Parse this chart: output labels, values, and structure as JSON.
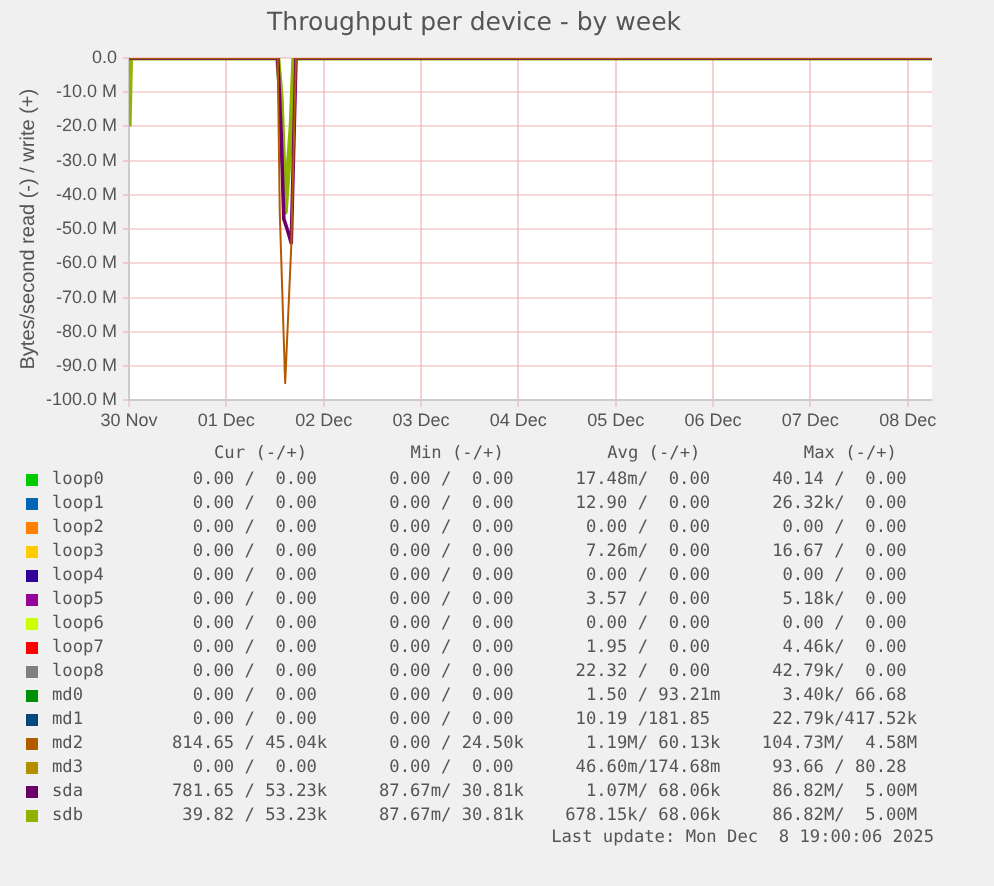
{
  "chart_data": {
    "type": "line",
    "title": "Throughput per device - by week",
    "ylabel": "Bytes/second read (-) / write (+)",
    "xlim": [
      "2025-11-30T00:00",
      "2025-12-08T06:00"
    ],
    "xticks": [
      {
        "value": "2025-11-30",
        "label": "30 Nov"
      },
      {
        "value": "2025-12-01",
        "label": "01 Dec"
      },
      {
        "value": "2025-12-02",
        "label": "02 Dec"
      },
      {
        "value": "2025-12-03",
        "label": "03 Dec"
      },
      {
        "value": "2025-12-04",
        "label": "04 Dec"
      },
      {
        "value": "2025-12-05",
        "label": "05 Dec"
      },
      {
        "value": "2025-12-06",
        "label": "06 Dec"
      },
      {
        "value": "2025-12-07",
        "label": "07 Dec"
      },
      {
        "value": "2025-12-08",
        "label": "08 Dec"
      }
    ],
    "ylim": [
      -100,
      0
    ],
    "yticks": [
      {
        "value": 0,
        "label": "0.0"
      },
      {
        "value": -10,
        "label": "-10.0 M"
      },
      {
        "value": -20,
        "label": "-20.0 M"
      },
      {
        "value": -30,
        "label": "-30.0 M"
      },
      {
        "value": -40,
        "label": "-40.0 M"
      },
      {
        "value": -50,
        "label": "-50.0 M"
      },
      {
        "value": -60,
        "label": "-60.0 M"
      },
      {
        "value": -70,
        "label": "-70.0 M"
      },
      {
        "value": -80,
        "label": "-80.0 M"
      },
      {
        "value": -90,
        "label": "-90.0 M"
      },
      {
        "value": -100,
        "label": "-100.0 M"
      }
    ],
    "grid": true,
    "legend": "bottom",
    "marker": "none",
    "line_style": "solid",
    "series": [
      {
        "name": "loop0",
        "color": "#00cc00"
      },
      {
        "name": "loop1",
        "color": "#0066b3"
      },
      {
        "name": "loop2",
        "color": "#ff8000"
      },
      {
        "name": "loop3",
        "color": "#ffcc00"
      },
      {
        "name": "loop4",
        "color": "#330099"
      },
      {
        "name": "loop5",
        "color": "#990099"
      },
      {
        "name": "loop6",
        "color": "#ccff00"
      },
      {
        "name": "loop7",
        "color": "#ff0000"
      },
      {
        "name": "loop8",
        "color": "#808080"
      },
      {
        "name": "md0",
        "color": "#008f00"
      },
      {
        "name": "md1",
        "color": "#00487d"
      },
      {
        "name": "md2",
        "color": "#b35a00",
        "x": [
          "2025-11-30T00:00",
          "2025-12-01T12:40",
          "2025-12-01T13:10",
          "2025-12-01T14:30",
          "2025-12-01T16:00",
          "2025-12-01T17:10",
          "2025-12-08T06:00"
        ],
        "values": [
          0,
          0,
          -45,
          -95,
          -55,
          0,
          0
        ]
      },
      {
        "name": "md3",
        "color": "#b38f00"
      },
      {
        "name": "sda",
        "color": "#6b006b",
        "x": [
          "2025-11-30T00:00",
          "2025-12-01T12:40",
          "2025-12-01T13:30",
          "2025-12-01T14:10",
          "2025-12-01T15:00",
          "2025-12-01T16:00",
          "2025-12-01T17:10",
          "2025-12-08T06:00"
        ],
        "values": [
          0,
          0,
          -22,
          -47,
          -50,
          -54,
          0,
          0
        ]
      },
      {
        "name": "sdb",
        "color": "#8fb300",
        "x": [
          "2025-11-30T00:00",
          "2025-11-30T00:20",
          "2025-12-01T12:40",
          "2025-12-01T13:30",
          "2025-12-01T14:30",
          "2025-12-01T16:00",
          "2025-12-01T16:40",
          "2025-12-08T06:00"
        ],
        "values": [
          -20,
          0,
          0,
          -12,
          -45,
          -20,
          0,
          0
        ]
      }
    ],
    "annotations": [
      "Cur (-/+)          Min (-/+)          Avg (-/+)          Max (-/+)",
      "  0.00 /  0.00       0.00 /  0.00      17.48m/  0.00      40.14 /  0.00",
      "  0.00 /  0.00       0.00 /  0.00      12.90 /  0.00      26.32k/  0.00",
      "  0.00 /  0.00       0.00 /  0.00       0.00 /  0.00       0.00 /  0.00",
      "  0.00 /  0.00       0.00 /  0.00       7.26m/  0.00      16.67 /  0.00",
      "  0.00 /  0.00       0.00 /  0.00       0.00 /  0.00       0.00 /  0.00",
      "  0.00 /  0.00       0.00 /  0.00       3.57 /  0.00       5.18k/  0.00",
      "  0.00 /  0.00       0.00 /  0.00       0.00 /  0.00       0.00 /  0.00",
      "  0.00 /  0.00       0.00 /  0.00       1.95 /  0.00       4.46k/  0.00",
      "  0.00 /  0.00       0.00 /  0.00      22.32 /  0.00      42.79k/  0.00",
      "  0.00 /  0.00       0.00 /  0.00       1.50 / 93.21m      3.40k/ 66.68",
      "  0.00 /  0.00       0.00 /  0.00      10.19 /181.85      22.79k/417.52k",
      "814.65 / 45.04k      0.00 / 24.50k      1.19M/ 60.13k    104.73M/  4.58M",
      "  0.00 /  0.00       0.00 /  0.00      46.60m/174.68m     93.66 / 80.28",
      "781.65 / 53.23k     87.67m/ 30.81k      1.07M/ 68.06k     86.82M/  5.00M",
      " 39.82 / 53.23k     87.67m/ 30.81k    678.15k/ 68.06k     86.82M/  5.00M",
      "Last update: Mon Dec  8 19:00:06 2025"
    ]
  }
}
